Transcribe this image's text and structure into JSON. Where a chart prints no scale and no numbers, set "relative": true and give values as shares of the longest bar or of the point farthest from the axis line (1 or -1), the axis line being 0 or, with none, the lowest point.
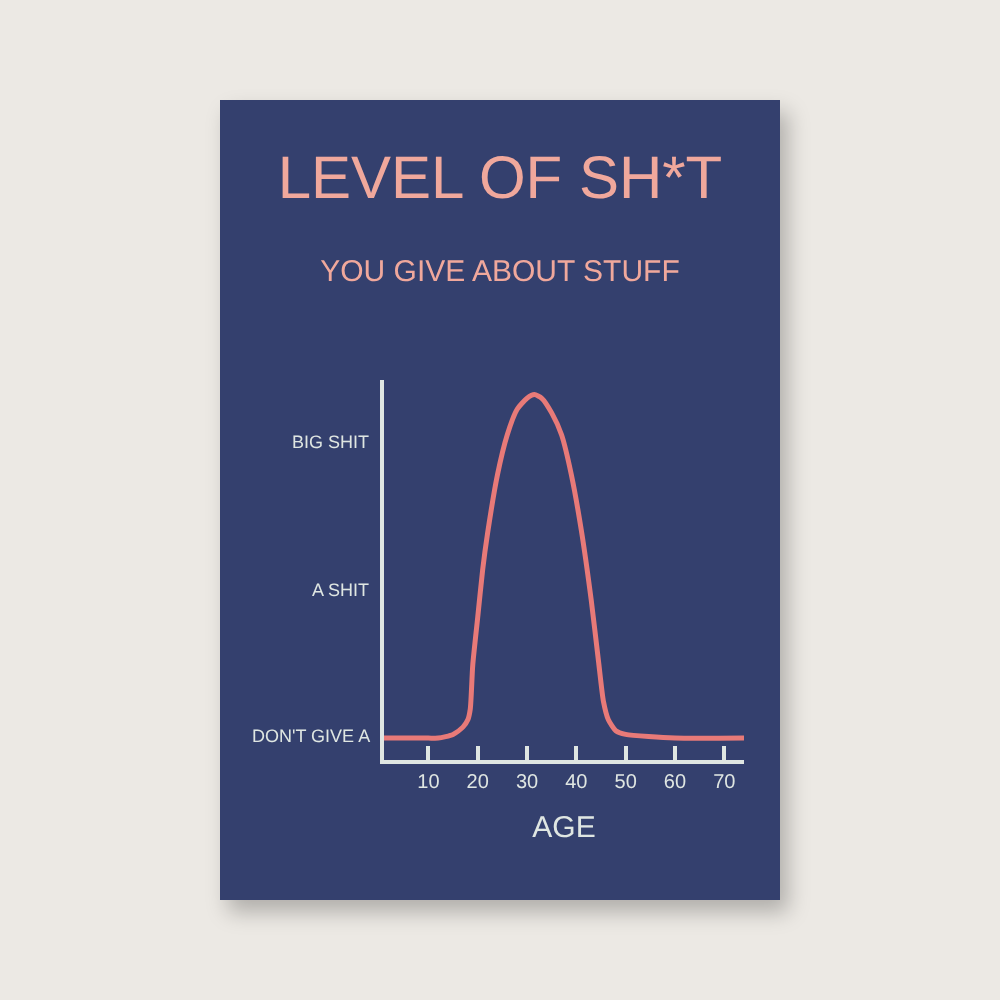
{
  "chart_data": {
    "type": "line",
    "title": "LEVEL OF SH*T",
    "subtitle": "YOU GIVE ABOUT STUFF",
    "xlabel": "AGE",
    "relative": true,
    "annotations": [
      "BIG SHIT",
      "A SHIT",
      "DON'T GIVE A"
    ],
    "x": [
      1,
      5,
      10,
      12,
      15,
      17,
      18,
      18.5,
      19,
      20,
      21,
      22,
      24,
      26,
      28,
      30,
      31.5,
      33,
      35,
      37,
      39,
      41,
      43,
      44.5,
      45.5,
      46.5,
      48,
      50,
      60,
      74
    ],
    "series": [
      {
        "color": "#e87a78",
        "values": [
          0.06,
          0.06,
          0.06,
          0.06,
          0.07,
          0.09,
          0.11,
          0.14,
          0.26,
          0.39,
          0.52,
          0.62,
          0.78,
          0.89,
          0.96,
          0.99,
          1,
          0.99,
          0.95,
          0.89,
          0.78,
          0.63,
          0.44,
          0.27,
          0.16,
          0.11,
          0.08,
          0.07,
          0.06,
          0.06
        ]
      }
    ],
    "xlim": [
      1,
      74
    ],
    "xticks": [
      10,
      20,
      30,
      40,
      50,
      60,
      70
    ],
    "grid": false,
    "marker": "none",
    "line_style": "solid"
  }
}
